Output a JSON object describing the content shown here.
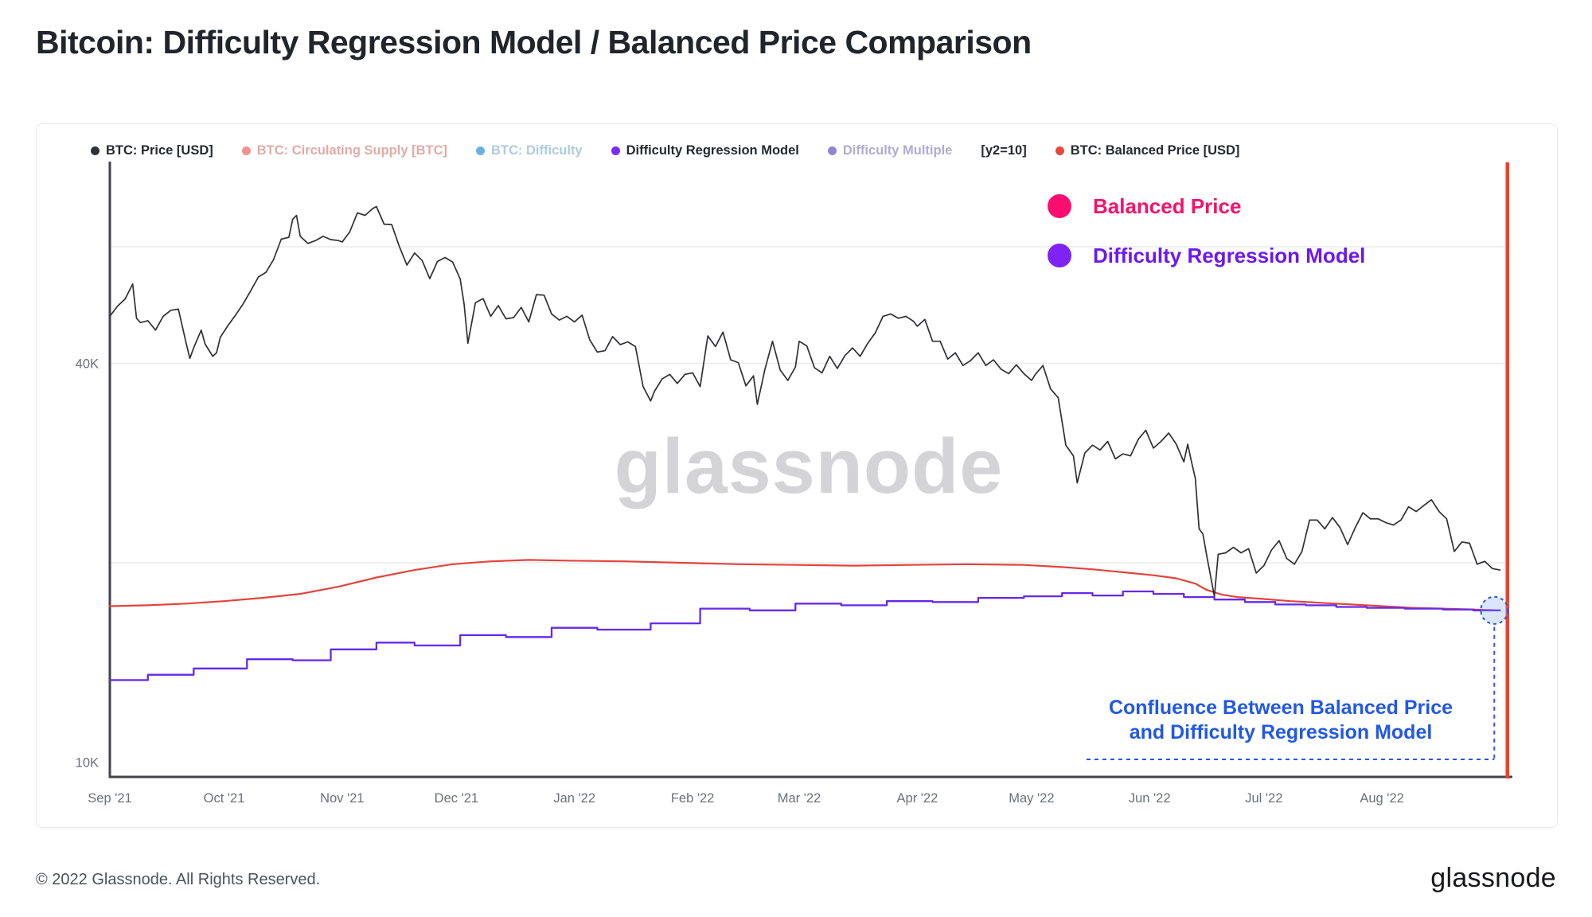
{
  "page": {
    "title": "Bitcoin: Difficulty Regression Model / Balanced Price Comparison",
    "copyright": "© 2022 Glassnode. All Rights Reserved.",
    "brand_logo": "glassnode",
    "watermark": "glassnode"
  },
  "legend": {
    "items": [
      {
        "label": "BTC: Price [USD]",
        "dot": "#2f3237",
        "color": "#24292e"
      },
      {
        "label": "BTC: Circulating Supply [BTC]",
        "dot": "#f0918b",
        "color": "#e2aba7"
      },
      {
        "label": "BTC: Difficulty",
        "dot": "#64b4e2",
        "color": "#aecbde"
      },
      {
        "label": "Difficulty Regression Model",
        "dot": "#7a2cf0",
        "color": "#24292e"
      },
      {
        "label": "Difficulty Multiple",
        "dot": "#9084d8",
        "color": "#b2abd4"
      },
      {
        "label": "[y2=10]",
        "dot": null,
        "color": "#24292e"
      },
      {
        "label": "BTC: Balanced Price [USD]",
        "dot": "#e8473e",
        "color": "#24292e"
      }
    ]
  },
  "annotations": {
    "balanced_price": {
      "label": "Balanced Price",
      "color": "#f5126b",
      "dot_color": "#fc0e70"
    },
    "difficulty_regression": {
      "label": "Difficulty Regression Model",
      "color": "#6d17f2",
      "dot_color": "#7e22f5"
    },
    "confluence": {
      "line1": "Confluence Between Balanced Price",
      "line2": "and Difficulty Regression Model",
      "color": "#2158e6"
    },
    "right_edge_marker_color": "#fa3b25"
  },
  "chart_data": {
    "type": "line",
    "title": "Bitcoin: Difficulty Regression Model / Balanced Price Comparison",
    "x_axis": {
      "unit": "days since 2021-09-01",
      "xlim": [
        0,
        367
      ],
      "tick_days": [
        0,
        30,
        61,
        91,
        122,
        153,
        181,
        212,
        242,
        273,
        303,
        334
      ],
      "tick_labels": [
        "Sep '21",
        "Oct '21",
        "Nov '21",
        "Dec '21",
        "Jan '22",
        "Feb '22",
        "Mar '22",
        "Apr '22",
        "May '22",
        "Jun '22",
        "Jul '22",
        "Aug '22"
      ]
    },
    "y_axis": {
      "scale": "log",
      "unit": "USD",
      "ylim": [
        9500,
        80000
      ],
      "ticks": [
        {
          "value": 40000,
          "label": "40K"
        },
        {
          "value": 10000,
          "label": "10K"
        }
      ],
      "gridlines": [
        20000,
        40000,
        60000
      ]
    },
    "series": [
      {
        "name": "BTC: Price [USD]",
        "color": "#2e3033",
        "width": 1.7,
        "mode": "line",
        "points": [
          [
            0,
            47100
          ],
          [
            2,
            48800
          ],
          [
            4,
            50000
          ],
          [
            6,
            52700
          ],
          [
            7,
            46800
          ],
          [
            8,
            46100
          ],
          [
            10,
            46400
          ],
          [
            12,
            44900
          ],
          [
            14,
            47100
          ],
          [
            16,
            48100
          ],
          [
            18,
            48300
          ],
          [
            20,
            43000
          ],
          [
            21,
            40700
          ],
          [
            22,
            42200
          ],
          [
            24,
            44900
          ],
          [
            25,
            42800
          ],
          [
            27,
            41000
          ],
          [
            28,
            41500
          ],
          [
            29,
            43800
          ],
          [
            31,
            45600
          ],
          [
            33,
            47300
          ],
          [
            35,
            49200
          ],
          [
            37,
            51500
          ],
          [
            39,
            54000
          ],
          [
            41,
            54900
          ],
          [
            43,
            57400
          ],
          [
            45,
            61600
          ],
          [
            47,
            62000
          ],
          [
            48,
            66000
          ],
          [
            49,
            66900
          ],
          [
            50,
            62200
          ],
          [
            52,
            60700
          ],
          [
            54,
            61300
          ],
          [
            56,
            62200
          ],
          [
            58,
            61500
          ],
          [
            60,
            61300
          ],
          [
            61,
            61000
          ],
          [
            63,
            63200
          ],
          [
            65,
            67500
          ],
          [
            67,
            66900
          ],
          [
            69,
            68500
          ],
          [
            70,
            69000
          ],
          [
            72,
            64900
          ],
          [
            74,
            64800
          ],
          [
            76,
            60100
          ],
          [
            78,
            56300
          ],
          [
            80,
            58700
          ],
          [
            82,
            57200
          ],
          [
            84,
            53700
          ],
          [
            86,
            57000
          ],
          [
            88,
            57800
          ],
          [
            90,
            56900
          ],
          [
            92,
            53600
          ],
          [
            93,
            49200
          ],
          [
            94,
            42900
          ],
          [
            96,
            49400
          ],
          [
            98,
            50100
          ],
          [
            100,
            47100
          ],
          [
            102,
            48900
          ],
          [
            104,
            46700
          ],
          [
            106,
            46900
          ],
          [
            108,
            48600
          ],
          [
            110,
            46200
          ],
          [
            112,
            50800
          ],
          [
            114,
            50700
          ],
          [
            116,
            47500
          ],
          [
            118,
            46500
          ],
          [
            120,
            47100
          ],
          [
            122,
            46200
          ],
          [
            124,
            47300
          ],
          [
            126,
            43400
          ],
          [
            128,
            41600
          ],
          [
            130,
            41800
          ],
          [
            132,
            43900
          ],
          [
            134,
            42700
          ],
          [
            136,
            43100
          ],
          [
            138,
            42400
          ],
          [
            140,
            36900
          ],
          [
            142,
            35100
          ],
          [
            143,
            36300
          ],
          [
            145,
            37900
          ],
          [
            147,
            38500
          ],
          [
            149,
            37300
          ],
          [
            151,
            38500
          ],
          [
            153,
            38700
          ],
          [
            155,
            36900
          ],
          [
            157,
            44000
          ],
          [
            159,
            42400
          ],
          [
            161,
            44600
          ],
          [
            163,
            40500
          ],
          [
            165,
            40100
          ],
          [
            167,
            37000
          ],
          [
            169,
            38300
          ],
          [
            170,
            34700
          ],
          [
            172,
            39200
          ],
          [
            174,
            43200
          ],
          [
            176,
            39100
          ],
          [
            178,
            37700
          ],
          [
            180,
            39500
          ],
          [
            181,
            43200
          ],
          [
            183,
            42500
          ],
          [
            185,
            39400
          ],
          [
            187,
            38700
          ],
          [
            189,
            41000
          ],
          [
            191,
            39300
          ],
          [
            193,
            41100
          ],
          [
            195,
            42200
          ],
          [
            197,
            41000
          ],
          [
            199,
            42900
          ],
          [
            201,
            44500
          ],
          [
            203,
            47100
          ],
          [
            205,
            47500
          ],
          [
            207,
            46800
          ],
          [
            209,
            47100
          ],
          [
            211,
            46300
          ],
          [
            212,
            45500
          ],
          [
            214,
            46600
          ],
          [
            216,
            43200
          ],
          [
            218,
            43200
          ],
          [
            220,
            40600
          ],
          [
            222,
            41500
          ],
          [
            224,
            39700
          ],
          [
            226,
            40400
          ],
          [
            228,
            41500
          ],
          [
            230,
            39700
          ],
          [
            232,
            40500
          ],
          [
            234,
            39200
          ],
          [
            236,
            38600
          ],
          [
            238,
            39800
          ],
          [
            240,
            38600
          ],
          [
            242,
            37700
          ],
          [
            243,
            38500
          ],
          [
            245,
            39700
          ],
          [
            247,
            36600
          ],
          [
            249,
            35500
          ],
          [
            251,
            30100
          ],
          [
            253,
            29000
          ],
          [
            254,
            26400
          ],
          [
            256,
            29300
          ],
          [
            258,
            30100
          ],
          [
            260,
            29600
          ],
          [
            262,
            30500
          ],
          [
            264,
            28700
          ],
          [
            266,
            29200
          ],
          [
            268,
            29000
          ],
          [
            270,
            30700
          ],
          [
            272,
            31700
          ],
          [
            274,
            29800
          ],
          [
            276,
            30500
          ],
          [
            278,
            31400
          ],
          [
            280,
            30200
          ],
          [
            282,
            28400
          ],
          [
            283,
            30200
          ],
          [
            284,
            28400
          ],
          [
            285,
            26800
          ],
          [
            286,
            22500
          ],
          [
            287,
            22100
          ],
          [
            288,
            20500
          ],
          [
            290,
            17800
          ],
          [
            291,
            20600
          ],
          [
            293,
            20700
          ],
          [
            295,
            21100
          ],
          [
            297,
            20700
          ],
          [
            299,
            21000
          ],
          [
            301,
            19300
          ],
          [
            303,
            19800
          ],
          [
            305,
            20900
          ],
          [
            307,
            21600
          ],
          [
            309,
            20300
          ],
          [
            311,
            19900
          ],
          [
            313,
            20800
          ],
          [
            315,
            23200
          ],
          [
            317,
            23200
          ],
          [
            319,
            22500
          ],
          [
            321,
            23400
          ],
          [
            323,
            22600
          ],
          [
            325,
            21300
          ],
          [
            327,
            22600
          ],
          [
            329,
            23800
          ],
          [
            331,
            23300
          ],
          [
            333,
            23300
          ],
          [
            335,
            23000
          ],
          [
            337,
            22800
          ],
          [
            339,
            23200
          ],
          [
            341,
            24300
          ],
          [
            343,
            23900
          ],
          [
            345,
            24400
          ],
          [
            347,
            24900
          ],
          [
            349,
            23900
          ],
          [
            351,
            23300
          ],
          [
            353,
            20800
          ],
          [
            355,
            21500
          ],
          [
            357,
            21400
          ],
          [
            359,
            19900
          ],
          [
            361,
            20100
          ],
          [
            363,
            19600
          ],
          [
            365,
            19500
          ]
        ]
      },
      {
        "name": "BTC: Balanced Price [USD]",
        "color": "#e2443e",
        "width": 2.2,
        "mode": "line",
        "points": [
          [
            0,
            17200
          ],
          [
            10,
            17250
          ],
          [
            20,
            17350
          ],
          [
            30,
            17500
          ],
          [
            40,
            17700
          ],
          [
            50,
            17950
          ],
          [
            60,
            18400
          ],
          [
            70,
            19000
          ],
          [
            80,
            19500
          ],
          [
            90,
            19900
          ],
          [
            100,
            20100
          ],
          [
            110,
            20200
          ],
          [
            120,
            20150
          ],
          [
            135,
            20100
          ],
          [
            150,
            20000
          ],
          [
            165,
            19900
          ],
          [
            180,
            19850
          ],
          [
            195,
            19800
          ],
          [
            210,
            19850
          ],
          [
            225,
            19900
          ],
          [
            240,
            19850
          ],
          [
            250,
            19700
          ],
          [
            258,
            19550
          ],
          [
            266,
            19350
          ],
          [
            274,
            19150
          ],
          [
            280,
            18950
          ],
          [
            285,
            18600
          ],
          [
            288,
            18200
          ],
          [
            292,
            17900
          ],
          [
            296,
            17750
          ],
          [
            302,
            17650
          ],
          [
            310,
            17500
          ],
          [
            318,
            17400
          ],
          [
            326,
            17300
          ],
          [
            334,
            17200
          ],
          [
            342,
            17100
          ],
          [
            350,
            17050
          ],
          [
            358,
            17000
          ],
          [
            365,
            16950
          ]
        ]
      },
      {
        "name": "Difficulty Regression Model",
        "color": "#6629e8",
        "width": 2.3,
        "mode": "step",
        "points": [
          [
            0,
            13300
          ],
          [
            10,
            13550
          ],
          [
            22,
            13850
          ],
          [
            36,
            14300
          ],
          [
            48,
            14250
          ],
          [
            58,
            14800
          ],
          [
            70,
            15150
          ],
          [
            80,
            15000
          ],
          [
            92,
            15550
          ],
          [
            104,
            15450
          ],
          [
            116,
            15950
          ],
          [
            128,
            15850
          ],
          [
            142,
            16200
          ],
          [
            155,
            17050
          ],
          [
            168,
            16950
          ],
          [
            180,
            17350
          ],
          [
            192,
            17250
          ],
          [
            204,
            17500
          ],
          [
            216,
            17450
          ],
          [
            228,
            17700
          ],
          [
            240,
            17800
          ],
          [
            250,
            18000
          ],
          [
            258,
            17850
          ],
          [
            266,
            18100
          ],
          [
            274,
            17950
          ],
          [
            282,
            17750
          ],
          [
            290,
            17600
          ],
          [
            298,
            17450
          ],
          [
            306,
            17300
          ],
          [
            314,
            17250
          ],
          [
            322,
            17150
          ],
          [
            330,
            17100
          ],
          [
            340,
            17050
          ],
          [
            350,
            17000
          ],
          [
            358,
            16950
          ],
          [
            365,
            16950
          ]
        ]
      }
    ]
  }
}
